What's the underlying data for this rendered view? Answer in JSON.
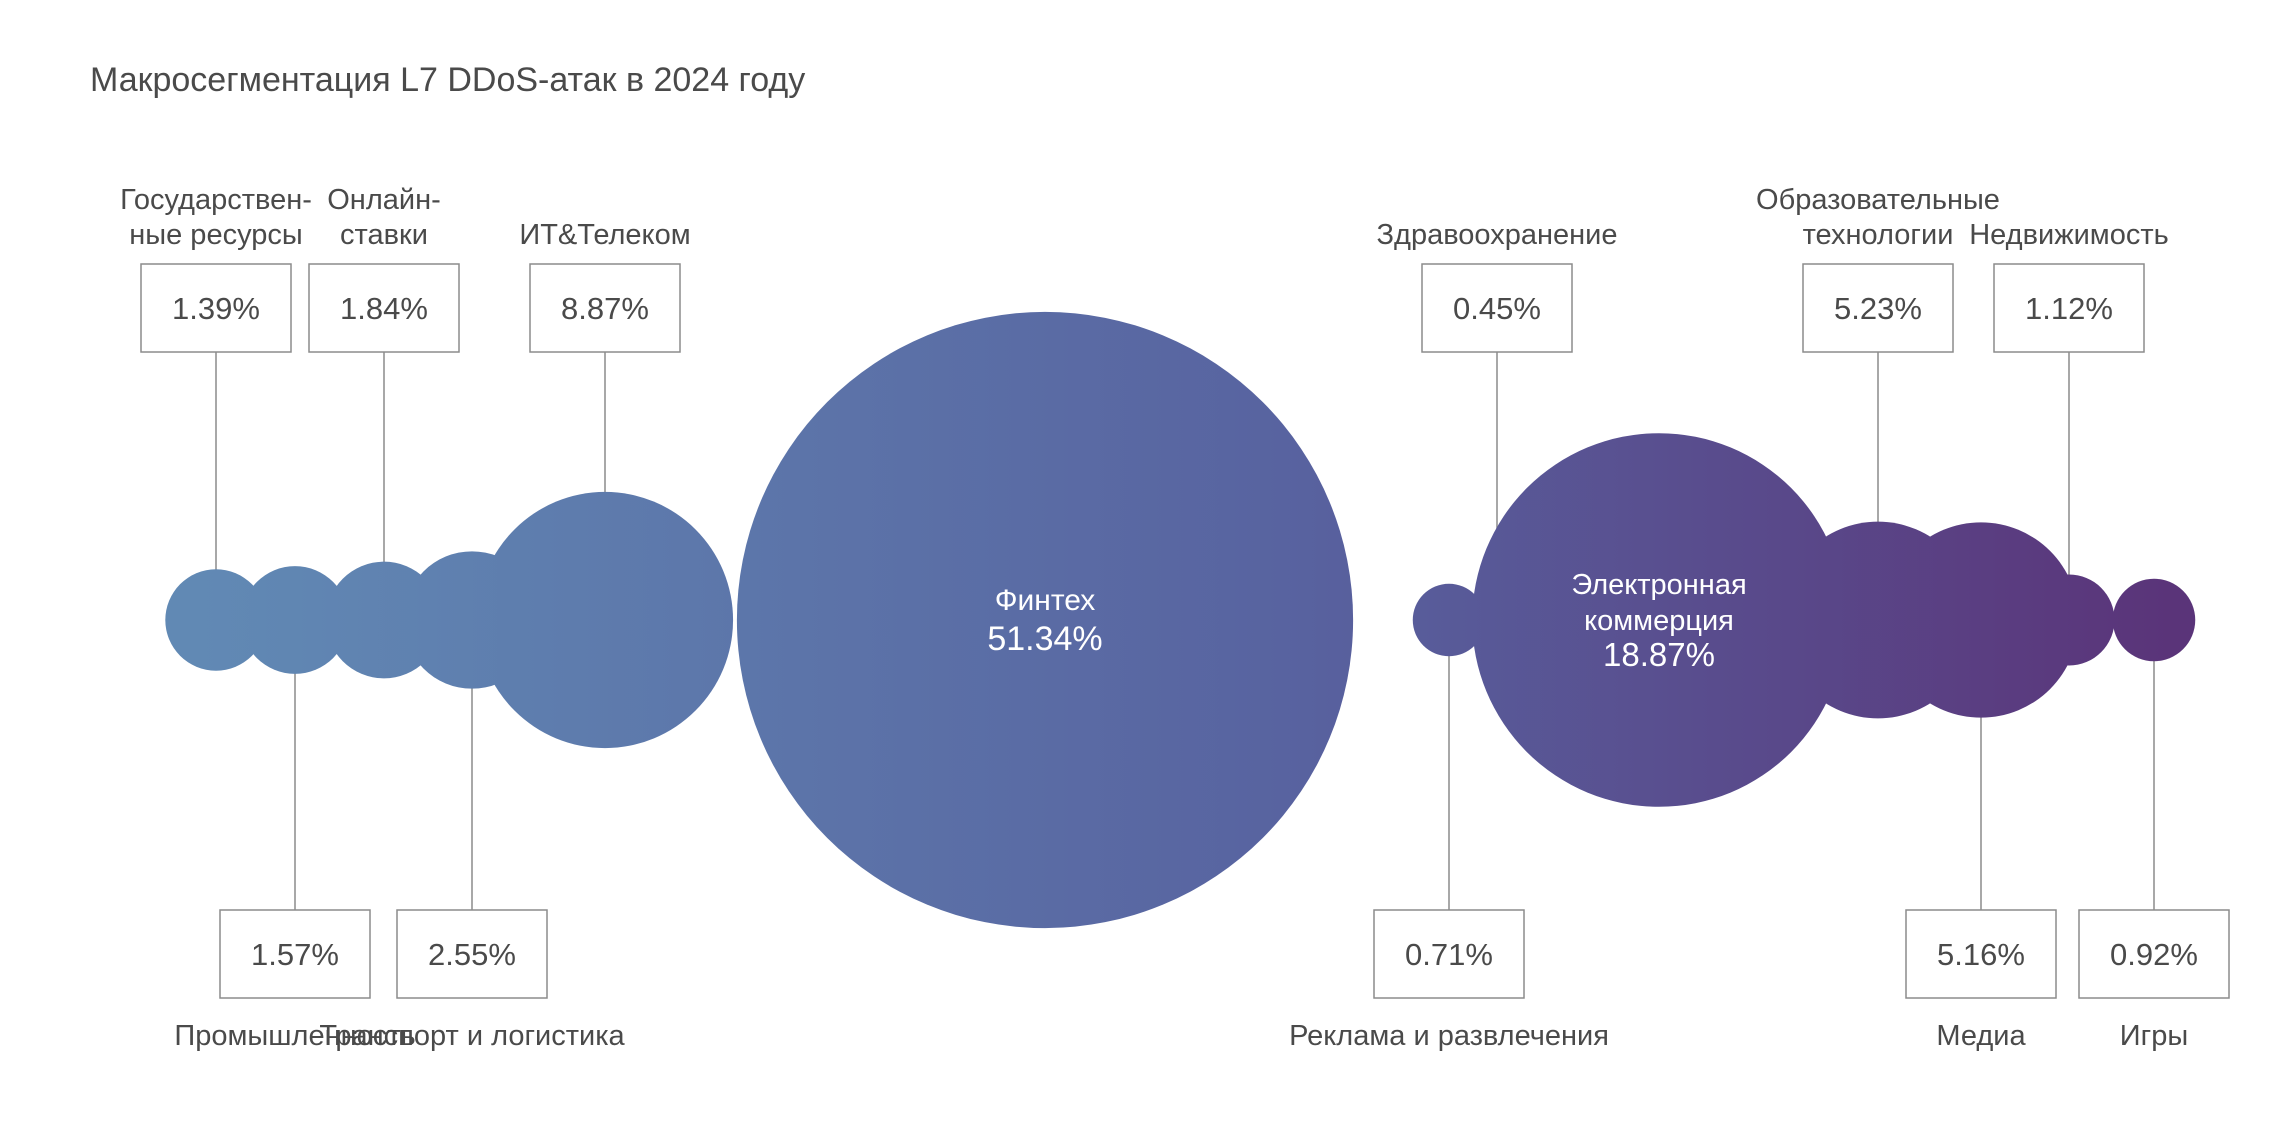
{
  "chart_data": {
    "type": "bubble",
    "title": "Макросегментация L7 DDoS-атак в 2024 году",
    "colors": {
      "start": "#6189b4",
      "mid": "#5863a0",
      "end": "#5a3479"
    },
    "categories": [
      {
        "name": [
          "Государствен-",
          "ные ресурсы"
        ],
        "value": 1.39,
        "label": "1.39%",
        "label_pos": "top"
      },
      {
        "name": [
          "Промышленность"
        ],
        "value": 1.57,
        "label": "1.57%",
        "label_pos": "bottom"
      },
      {
        "name": [
          "Онлайн-",
          "ставки"
        ],
        "value": 1.84,
        "label": "1.84%",
        "label_pos": "top"
      },
      {
        "name": [
          "Транспорт и логистика"
        ],
        "value": 2.55,
        "label": "2.55%",
        "label_pos": "bottom"
      },
      {
        "name": [
          "ИТ&Телеком"
        ],
        "value": 8.87,
        "label": "8.87%",
        "label_pos": "top"
      },
      {
        "name": [
          "Финтех"
        ],
        "value": 51.34,
        "label": "51.34%",
        "label_pos": "inside"
      },
      {
        "name": [
          "Реклама и развлечения"
        ],
        "value": 0.71,
        "label": "0.71%",
        "label_pos": "bottom"
      },
      {
        "name": [
          "Здравоохранение"
        ],
        "value": 0.45,
        "label": "0.45%",
        "label_pos": "top"
      },
      {
        "name": [
          "Электронная",
          "коммерция"
        ],
        "value": 18.87,
        "label": "18.87%",
        "label_pos": "inside"
      },
      {
        "name": [
          "Образовательные",
          "технологии"
        ],
        "value": 5.23,
        "label": "5.23%",
        "label_pos": "top"
      },
      {
        "name": [
          "Медиа"
        ],
        "value": 5.16,
        "label": "5.16%",
        "label_pos": "bottom"
      },
      {
        "name": [
          "Недвижимость"
        ],
        "value": 1.12,
        "label": "1.12%",
        "label_pos": "top"
      },
      {
        "name": [
          "Игры"
        ],
        "value": 0.92,
        "label": "0.92%",
        "label_pos": "bottom"
      }
    ]
  }
}
